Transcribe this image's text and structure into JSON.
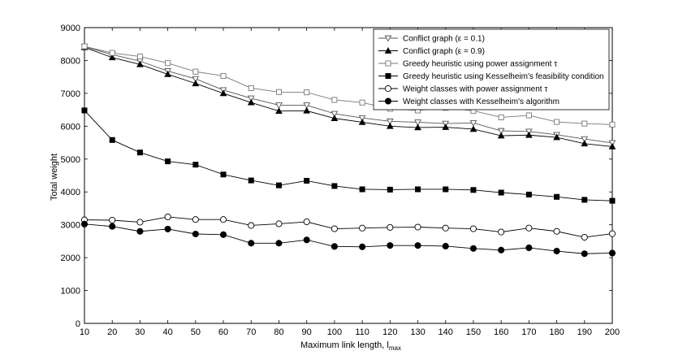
{
  "chart_data": {
    "type": "line",
    "xlabel": "Maximum link length, l",
    "xlabel_sub": "max",
    "ylabel": "Total weight",
    "xlim": [
      10,
      200
    ],
    "ylim": [
      0,
      9000
    ],
    "x_ticks": [
      10,
      20,
      30,
      40,
      50,
      60,
      70,
      80,
      90,
      100,
      110,
      120,
      130,
      140,
      150,
      160,
      170,
      180,
      190,
      200
    ],
    "y_ticks": [
      0,
      1000,
      2000,
      3000,
      4000,
      5000,
      6000,
      7000,
      8000,
      9000
    ],
    "grid": false,
    "legend_position": "top-right",
    "x": [
      10,
      20,
      30,
      40,
      50,
      60,
      70,
      80,
      90,
      100,
      110,
      120,
      130,
      140,
      150,
      160,
      170,
      180,
      190,
      200
    ],
    "series": [
      {
        "name": "Conflict graph (ε = 0.1)",
        "marker": "triangle-down-open",
        "color": "#555555",
        "values": [
          8420,
          8180,
          7980,
          7680,
          7440,
          7100,
          6850,
          6640,
          6640,
          6380,
          6250,
          6150,
          6120,
          6080,
          6100,
          5860,
          5840,
          5740,
          5610,
          5490
        ]
      },
      {
        "name": "Conflict graph (ε = 0.9)",
        "marker": "triangle-up-filled",
        "color": "#000000",
        "values": [
          8400,
          8090,
          7880,
          7580,
          7300,
          7000,
          6720,
          6460,
          6470,
          6240,
          6120,
          6000,
          5960,
          5970,
          5910,
          5710,
          5730,
          5660,
          5470,
          5380
        ]
      },
      {
        "name": "Greedy heuristic using power assignment τ",
        "marker": "square-open",
        "color": "#777777",
        "values": [
          8430,
          8230,
          8120,
          7920,
          7660,
          7530,
          7160,
          7040,
          7030,
          6800,
          6720,
          6530,
          6480,
          6560,
          6470,
          6270,
          6330,
          6130,
          6080,
          6050
        ]
      },
      {
        "name": "Greedy heuristic using Kesselheim's feasibility condition",
        "marker": "square-filled",
        "color": "#000000",
        "values": [
          6480,
          5580,
          5200,
          4930,
          4830,
          4530,
          4350,
          4200,
          4340,
          4180,
          4080,
          4070,
          4080,
          4080,
          4060,
          3980,
          3920,
          3850,
          3760,
          3730
        ]
      },
      {
        "name": "Weight classes with power assignment τ",
        "marker": "circle-open",
        "color": "#000000",
        "values": [
          3150,
          3140,
          3080,
          3240,
          3160,
          3160,
          2980,
          3030,
          3090,
          2880,
          2900,
          2920,
          2930,
          2900,
          2880,
          2780,
          2900,
          2800,
          2620,
          2730
        ]
      },
      {
        "name": "Weight classes with Kesselheim's algorithm",
        "marker": "circle-filled",
        "color": "#000000",
        "values": [
          3020,
          2950,
          2800,
          2870,
          2720,
          2700,
          2440,
          2440,
          2540,
          2340,
          2330,
          2370,
          2370,
          2350,
          2280,
          2230,
          2300,
          2200,
          2120,
          2140
        ]
      }
    ]
  }
}
